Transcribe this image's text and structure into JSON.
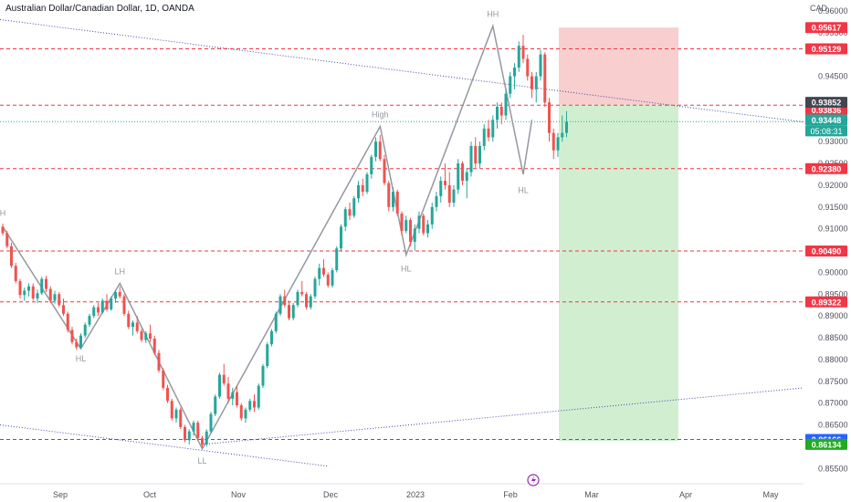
{
  "header": {
    "title": "Australian Dollar/Canadian Dollar, 1D, OANDA",
    "currency": "CAD"
  },
  "colors": {
    "up": "#26a69a",
    "down": "#ef5350",
    "level_red": "#f23645",
    "level_blue": "#2962ff",
    "zigzag": "#9598a1",
    "trend_blue": "#3949ab",
    "stop_zone": "#f7c6c6",
    "target_zone": "#c9ecc8",
    "price_badge": "#26a69a",
    "entry_badge": "#434651",
    "target_badge": "#22ab22"
  },
  "chart_data": {
    "type": "candlestick",
    "title": "Australian Dollar/Canadian Dollar, 1D, OANDA",
    "x_ticks": [
      "Sep",
      "Oct",
      "Nov",
      "Dec",
      "2023",
      "Feb",
      "Mar",
      "Apr",
      "May"
    ],
    "y_ticks": [
      "0.96000",
      "0.95500",
      "0.94500",
      "0.93500",
      "0.93000",
      "0.92500",
      "0.92000",
      "0.91500",
      "0.91000",
      "0.90500",
      "0.90000",
      "0.89500",
      "0.89000",
      "0.88500",
      "0.88000",
      "0.87500",
      "0.87000",
      "0.86500",
      "0.85500"
    ],
    "ylim": [
      0.8515,
      0.9625
    ],
    "grid": false,
    "horizontal_levels": [
      {
        "price": 0.95129,
        "label": "0.95129",
        "style": "red"
      },
      {
        "price": 0.93836,
        "label": "0.93836",
        "style": "red"
      },
      {
        "price": 0.9238,
        "label": "0.92380",
        "style": "red"
      },
      {
        "price": 0.9049,
        "label": "0.90490",
        "style": "red"
      },
      {
        "price": 0.89322,
        "label": "0.89322",
        "style": "red"
      },
      {
        "price": 0.86166,
        "label": "0.86166",
        "style": "blue"
      }
    ],
    "price_labels": {
      "stop": "0.95617",
      "entry": "0.93852",
      "current": "0.93448",
      "countdown": "05:08:31",
      "target": "0.86134"
    },
    "position": {
      "entry": 0.93852,
      "stop": 0.95617,
      "target": 0.86134,
      "direction": "short"
    },
    "swing_labels": [
      {
        "text": "H",
        "price": 0.9105
      },
      {
        "text": "HL",
        "price": 0.8825
      },
      {
        "text": "LH",
        "price": 0.8975
      },
      {
        "text": "LL",
        "price": 0.8595
      },
      {
        "text": "High",
        "price": 0.9335
      },
      {
        "text": "HL",
        "price": 0.904
      },
      {
        "text": "HH",
        "price": 0.9565
      },
      {
        "text": "HL",
        "price": 0.922
      }
    ],
    "candles_ohlc": [
      [
        0.9105,
        0.9112,
        0.9085,
        0.909
      ],
      [
        0.909,
        0.9095,
        0.9055,
        0.906
      ],
      [
        0.906,
        0.9068,
        0.901,
        0.9015
      ],
      [
        0.9015,
        0.9022,
        0.8975,
        0.898
      ],
      [
        0.898,
        0.8985,
        0.894,
        0.8948
      ],
      [
        0.8948,
        0.8965,
        0.8935,
        0.8958
      ],
      [
        0.8958,
        0.8975,
        0.8945,
        0.8968
      ],
      [
        0.8968,
        0.8975,
        0.8935,
        0.894
      ],
      [
        0.894,
        0.896,
        0.893,
        0.8952
      ],
      [
        0.8952,
        0.899,
        0.8948,
        0.8985
      ],
      [
        0.8985,
        0.8992,
        0.8955,
        0.8962
      ],
      [
        0.8962,
        0.8968,
        0.893,
        0.8935
      ],
      [
        0.8935,
        0.8958,
        0.8928,
        0.895
      ],
      [
        0.895,
        0.8955,
        0.892,
        0.8925
      ],
      [
        0.8925,
        0.894,
        0.89,
        0.8905
      ],
      [
        0.8905,
        0.891,
        0.8862,
        0.8868
      ],
      [
        0.8868,
        0.8875,
        0.8835,
        0.884
      ],
      [
        0.884,
        0.8848,
        0.8822,
        0.8828
      ],
      [
        0.8828,
        0.886,
        0.8825,
        0.8855
      ],
      [
        0.8855,
        0.8885,
        0.885,
        0.888
      ],
      [
        0.888,
        0.8905,
        0.8875,
        0.89
      ],
      [
        0.89,
        0.8925,
        0.8895,
        0.892
      ],
      [
        0.892,
        0.893,
        0.89,
        0.8908
      ],
      [
        0.8908,
        0.894,
        0.8905,
        0.8935
      ],
      [
        0.8935,
        0.895,
        0.891,
        0.8915
      ],
      [
        0.8915,
        0.8945,
        0.8912,
        0.894
      ],
      [
        0.894,
        0.896,
        0.893,
        0.8955
      ],
      [
        0.8955,
        0.8968,
        0.894,
        0.8945
      ],
      [
        0.8945,
        0.895,
        0.89,
        0.8905
      ],
      [
        0.8905,
        0.8912,
        0.887,
        0.8875
      ],
      [
        0.8875,
        0.889,
        0.8855,
        0.8885
      ],
      [
        0.8885,
        0.89,
        0.886,
        0.8865
      ],
      [
        0.8865,
        0.887,
        0.884,
        0.8845
      ],
      [
        0.8845,
        0.8865,
        0.8838,
        0.886
      ],
      [
        0.886,
        0.888,
        0.884,
        0.8848
      ],
      [
        0.8848,
        0.8855,
        0.881,
        0.8815
      ],
      [
        0.8815,
        0.8822,
        0.877,
        0.8775
      ],
      [
        0.8775,
        0.878,
        0.873,
        0.8735
      ],
      [
        0.8735,
        0.8742,
        0.87,
        0.8705
      ],
      [
        0.8705,
        0.871,
        0.866,
        0.8665
      ],
      [
        0.8665,
        0.869,
        0.8655,
        0.8685
      ],
      [
        0.8685,
        0.869,
        0.864,
        0.8645
      ],
      [
        0.8645,
        0.865,
        0.861,
        0.8615
      ],
      [
        0.8615,
        0.864,
        0.8605,
        0.8635
      ],
      [
        0.8635,
        0.866,
        0.8625,
        0.8655
      ],
      [
        0.8655,
        0.866,
        0.8615,
        0.862
      ],
      [
        0.862,
        0.8625,
        0.8598,
        0.8605
      ],
      [
        0.8605,
        0.864,
        0.86,
        0.8635
      ],
      [
        0.8635,
        0.868,
        0.863,
        0.8675
      ],
      [
        0.8675,
        0.872,
        0.867,
        0.8715
      ],
      [
        0.8715,
        0.877,
        0.871,
        0.8765
      ],
      [
        0.8765,
        0.879,
        0.874,
        0.8745
      ],
      [
        0.8745,
        0.876,
        0.87,
        0.871
      ],
      [
        0.871,
        0.8735,
        0.8695,
        0.8725
      ],
      [
        0.8725,
        0.874,
        0.869,
        0.8695
      ],
      [
        0.8695,
        0.87,
        0.866,
        0.8665
      ],
      [
        0.8665,
        0.869,
        0.8655,
        0.8685
      ],
      [
        0.8685,
        0.871,
        0.868,
        0.8705
      ],
      [
        0.8705,
        0.872,
        0.868,
        0.869
      ],
      [
        0.869,
        0.8745,
        0.8685,
        0.874
      ],
      [
        0.874,
        0.879,
        0.8735,
        0.8785
      ],
      [
        0.8785,
        0.884,
        0.878,
        0.8835
      ],
      [
        0.8835,
        0.887,
        0.883,
        0.8865
      ],
      [
        0.8865,
        0.891,
        0.886,
        0.8905
      ],
      [
        0.8905,
        0.895,
        0.89,
        0.8945
      ],
      [
        0.8945,
        0.896,
        0.892,
        0.8925
      ],
      [
        0.8925,
        0.8935,
        0.889,
        0.8895
      ],
      [
        0.8895,
        0.893,
        0.889,
        0.8925
      ],
      [
        0.8925,
        0.896,
        0.892,
        0.8955
      ],
      [
        0.8955,
        0.898,
        0.8945,
        0.895
      ],
      [
        0.895,
        0.8955,
        0.8915,
        0.892
      ],
      [
        0.892,
        0.895,
        0.8915,
        0.8945
      ],
      [
        0.8945,
        0.899,
        0.894,
        0.8985
      ],
      [
        0.8985,
        0.902,
        0.897,
        0.901
      ],
      [
        0.901,
        0.903,
        0.899,
        0.8995
      ],
      [
        0.8995,
        0.9,
        0.8965,
        0.897
      ],
      [
        0.897,
        0.901,
        0.8965,
        0.9005
      ],
      [
        0.9005,
        0.906,
        0.9,
        0.9055
      ],
      [
        0.9055,
        0.911,
        0.905,
        0.9105
      ],
      [
        0.9105,
        0.915,
        0.9095,
        0.9145
      ],
      [
        0.9145,
        0.916,
        0.912,
        0.913
      ],
      [
        0.913,
        0.9175,
        0.9125,
        0.917
      ],
      [
        0.917,
        0.921,
        0.916,
        0.92
      ],
      [
        0.92,
        0.9215,
        0.9175,
        0.9185
      ],
      [
        0.9185,
        0.923,
        0.918,
        0.9225
      ],
      [
        0.9225,
        0.927,
        0.9215,
        0.9265
      ],
      [
        0.9265,
        0.931,
        0.9255,
        0.93
      ],
      [
        0.93,
        0.9315,
        0.9255,
        0.926
      ],
      [
        0.926,
        0.927,
        0.92,
        0.9205
      ],
      [
        0.9205,
        0.921,
        0.914,
        0.915
      ],
      [
        0.915,
        0.9195,
        0.914,
        0.9185
      ],
      [
        0.9185,
        0.919,
        0.913,
        0.9135
      ],
      [
        0.9135,
        0.914,
        0.9085,
        0.9095
      ],
      [
        0.9095,
        0.913,
        0.909,
        0.912
      ],
      [
        0.912,
        0.9125,
        0.906,
        0.907
      ],
      [
        0.907,
        0.911,
        0.905,
        0.91
      ],
      [
        0.91,
        0.914,
        0.909,
        0.913
      ],
      [
        0.913,
        0.9135,
        0.9085,
        0.909
      ],
      [
        0.909,
        0.912,
        0.908,
        0.911
      ],
      [
        0.911,
        0.916,
        0.91,
        0.915
      ],
      [
        0.915,
        0.9185,
        0.914,
        0.9175
      ],
      [
        0.9175,
        0.922,
        0.916,
        0.921
      ],
      [
        0.921,
        0.925,
        0.919,
        0.92
      ],
      [
        0.92,
        0.923,
        0.915,
        0.916
      ],
      [
        0.916,
        0.92,
        0.915,
        0.919
      ],
      [
        0.919,
        0.926,
        0.918,
        0.925
      ],
      [
        0.925,
        0.9255,
        0.92,
        0.921
      ],
      [
        0.921,
        0.924,
        0.917,
        0.923
      ],
      [
        0.923,
        0.93,
        0.922,
        0.929
      ],
      [
        0.929,
        0.931,
        0.924,
        0.925
      ],
      [
        0.925,
        0.93,
        0.924,
        0.929
      ],
      [
        0.929,
        0.934,
        0.928,
        0.933
      ],
      [
        0.933,
        0.935,
        0.93,
        0.931
      ],
      [
        0.931,
        0.936,
        0.93,
        0.935
      ],
      [
        0.935,
        0.939,
        0.933,
        0.938
      ],
      [
        0.938,
        0.939,
        0.934,
        0.936
      ],
      [
        0.936,
        0.942,
        0.935,
        0.941
      ],
      [
        0.941,
        0.946,
        0.94,
        0.945
      ],
      [
        0.945,
        0.948,
        0.942,
        0.947
      ],
      [
        0.947,
        0.953,
        0.946,
        0.952
      ],
      [
        0.952,
        0.9545,
        0.948,
        0.949
      ],
      [
        0.949,
        0.95,
        0.944,
        0.945
      ],
      [
        0.945,
        0.946,
        0.94,
        0.942
      ],
      [
        0.942,
        0.946,
        0.939,
        0.945
      ],
      [
        0.945,
        0.951,
        0.944,
        0.95
      ],
      [
        0.95,
        0.9505,
        0.938,
        0.939
      ],
      [
        0.939,
        0.94,
        0.93,
        0.932
      ],
      [
        0.932,
        0.933,
        0.926,
        0.928
      ],
      [
        0.928,
        0.932,
        0.9265,
        0.931
      ],
      [
        0.931,
        0.936,
        0.93,
        0.932
      ],
      [
        0.932,
        0.937,
        0.931,
        0.9345
      ]
    ]
  }
}
